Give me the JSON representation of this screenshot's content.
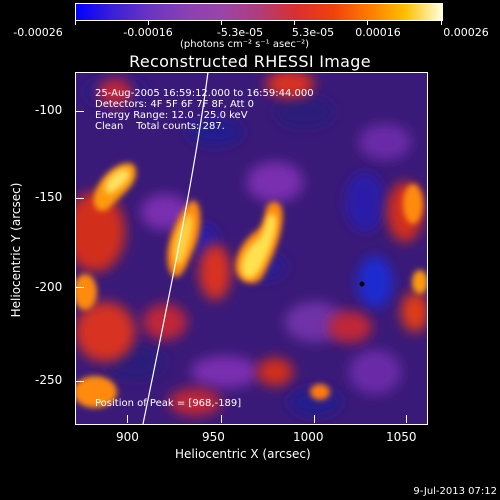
{
  "colorbar": {
    "tick_labels": [
      "-0.00026",
      "-0.00016",
      "-5.3e-05",
      "5.3e-05",
      "0.00016",
      "0.00026"
    ],
    "units": "(photons cm⁻² s⁻¹ asec⁻²)",
    "colors": [
      "#0000ff",
      "#8a3fb3",
      "#d9302f",
      "#ff7a00",
      "#ffffdc"
    ]
  },
  "title": "Reconstructed RHESSI Image",
  "annotations": {
    "line1": "25-Aug-2005 16:59:12.000 to 16:59:44.000",
    "line2": "Detectors: 4F 5F 6F 7F 8F, Att 0",
    "line3": "Energy Range: 12.0 - 25.0 keV",
    "line4": "Clean    Total counts: 287.",
    "peak": "Position of Peak = [968,-189]"
  },
  "axes": {
    "xlabel": "Heliocentric X (arcsec)",
    "ylabel": "Heliocentric Y (arcsec)",
    "xticks": [
      "900",
      "950",
      "1000",
      "1050"
    ],
    "yticks": [
      "-100",
      "-150",
      "-200",
      "-250"
    ]
  },
  "timestamp": "9-Jul-2013 07:12"
}
